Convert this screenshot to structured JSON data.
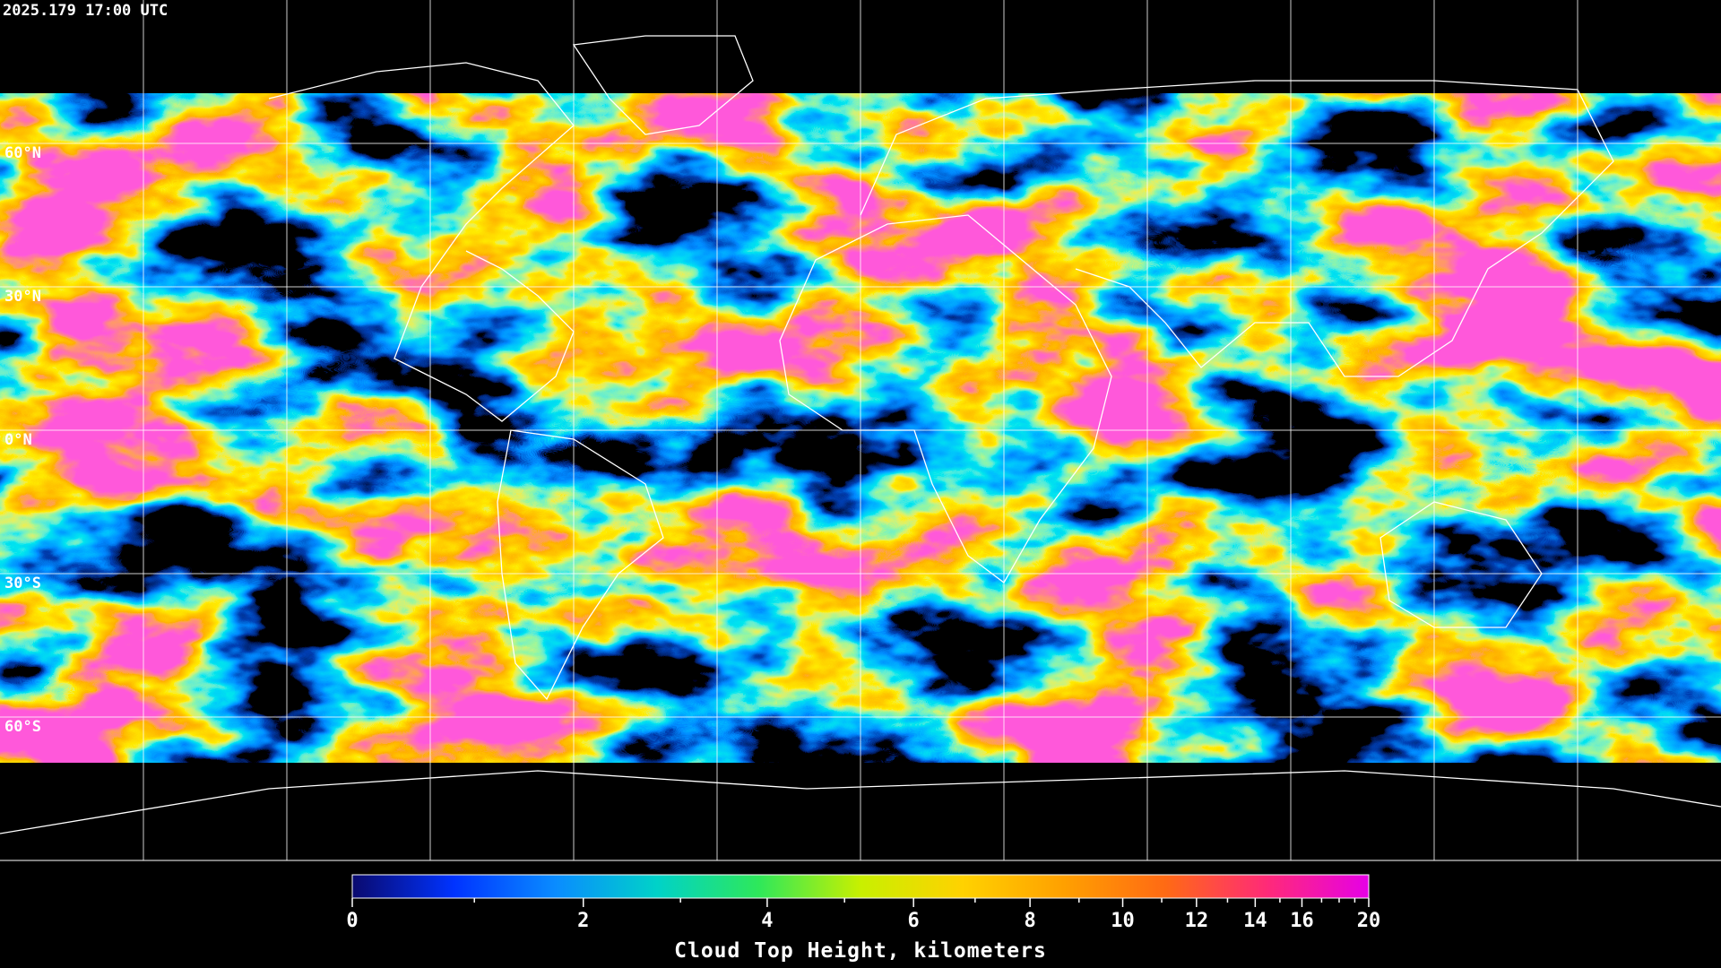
{
  "timestamp": "2025.179 17:00 UTC",
  "map": {
    "lat_range": [
      90,
      -90
    ],
    "lon_range": [
      -180,
      180
    ],
    "lat_lines": [
      {
        "value": 60,
        "label": "60°N"
      },
      {
        "value": 30,
        "label": "30°N"
      },
      {
        "value": 0,
        "label": "0°N"
      },
      {
        "value": -30,
        "label": "30°S"
      },
      {
        "value": -60,
        "label": "60°S"
      }
    ],
    "lon_lines": [
      -150,
      -120,
      -90,
      -60,
      -30,
      0,
      30,
      60,
      90,
      120,
      150
    ]
  },
  "chart_data": {
    "type": "colorbar",
    "title": "Cloud Top Height, kilometers",
    "xlim": [
      0,
      20
    ],
    "xticks": [
      0,
      2,
      4,
      6,
      8,
      10,
      12,
      14,
      16,
      20
    ],
    "minor_ticks": [
      1,
      3,
      5,
      7,
      9,
      11,
      13,
      15,
      17,
      18,
      19
    ],
    "colors": [
      "#0a0a6e",
      "#0033ff",
      "#0a8cff",
      "#00d2c8",
      "#2ee85a",
      "#c8f000",
      "#ffd200",
      "#ffa000",
      "#ff6a14",
      "#ff2a78",
      "#e600e6"
    ]
  }
}
